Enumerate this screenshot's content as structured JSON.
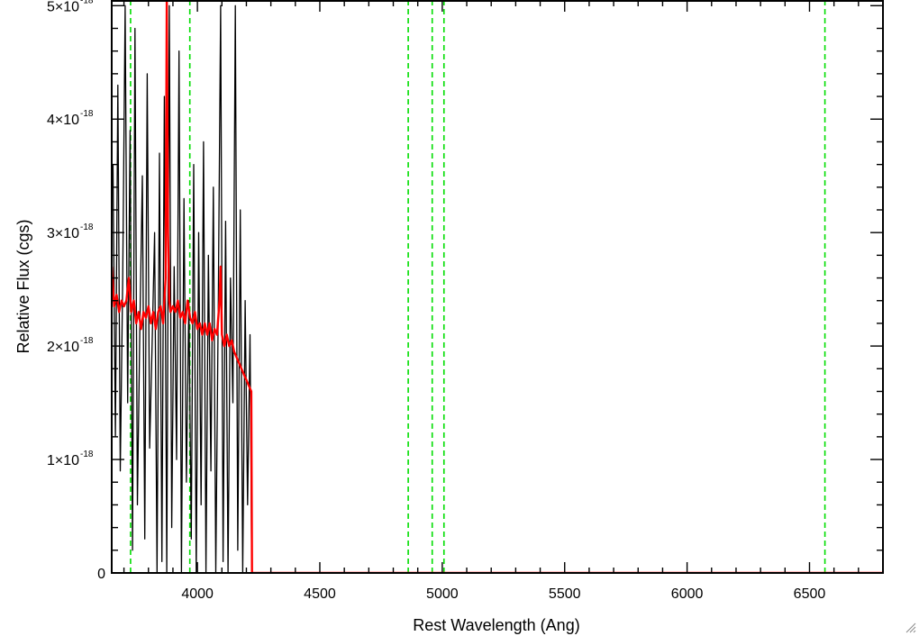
{
  "chart_data": {
    "type": "line",
    "title": "",
    "xlabel": "Rest Wavelength (Ang)",
    "ylabel": "Relative Flux (cgs)",
    "xlim": [
      3650,
      6800
    ],
    "ylim": [
      0,
      5.05e-18
    ],
    "x_ticks": [
      {
        "value": 4000,
        "label": "4000"
      },
      {
        "value": 4500,
        "label": "4500"
      },
      {
        "value": 5000,
        "label": "5000"
      },
      {
        "value": 5500,
        "label": "5500"
      },
      {
        "value": 6000,
        "label": "6000"
      },
      {
        "value": 6500,
        "label": "6500"
      }
    ],
    "y_ticks": [
      {
        "value": 0,
        "label": "0",
        "exponent": ""
      },
      {
        "value": 1e-18,
        "label": "1×10",
        "exponent": "-18"
      },
      {
        "value": 2e-18,
        "label": "2×10",
        "exponent": "-18"
      },
      {
        "value": 3e-18,
        "label": "3×10",
        "exponent": "-18"
      },
      {
        "value": 4e-18,
        "label": "4×10",
        "exponent": "-18"
      },
      {
        "value": 5e-18,
        "label": "5×10",
        "exponent": "-18"
      }
    ],
    "emission_line_markers": {
      "color": "#00dd00",
      "style": "dashed",
      "x": [
        3727,
        3969,
        4861,
        4959,
        5007,
        6563
      ]
    },
    "series": [
      {
        "color": "#000000",
        "style": "noisy observed spectrum, values clipped at top of plot",
        "x": [
          3655,
          3665,
          3675,
          3685,
          3695,
          3705,
          3715,
          3725,
          3735,
          3745,
          3755,
          3765,
          3775,
          3785,
          3795,
          3805,
          3815,
          3825,
          3835,
          3845,
          3855,
          3865,
          3875,
          3885,
          3895,
          3905,
          3915,
          3925,
          3935,
          3945,
          3955,
          3965,
          3975,
          3985,
          3995,
          4005,
          4015,
          4025,
          4035,
          4045,
          4055,
          4065,
          4075,
          4085,
          4095,
          4105,
          4115,
          4125,
          4135,
          4145,
          4155,
          4165,
          4175,
          4185,
          4195,
          4205,
          4215,
          4222,
          4230,
          4500,
          5000,
          5500,
          6000,
          6500,
          6800
        ],
        "values": [
          3.6e-18,
          1.2e-18,
          4.3e-18,
          9e-19,
          2.6e-18,
          5e-18,
          1.5e-18,
          3.9e-18,
          2e-19,
          4.8e-18,
          6e-19,
          2.2e-18,
          3.5e-18,
          3e-19,
          4.4e-18,
          1.1e-18,
          2e-18,
          3e-18,
          0.0,
          3.7e-18,
          1e-19,
          4.2e-18,
          0.0,
          5e-18,
          4e-19,
          2.7e-18,
          1e-18,
          4.6e-18,
          0.0,
          3.3e-18,
          8e-19,
          2.4e-18,
          3e-19,
          3.6e-18,
          0.0,
          3e-18,
          6e-19,
          3.8e-18,
          0.0,
          2.8e-18,
          9e-19,
          3.4e-18,
          0.0,
          2.3e-18,
          5e-18,
          1e-19,
          3.1e-18,
          0.0,
          2.6e-18,
          1.5e-18,
          5e-18,
          2e-19,
          3.2e-18,
          0.0,
          2.4e-18,
          6e-19,
          2.1e-18,
          0.0,
          0.0,
          0.0,
          0.0,
          0.0,
          0.0,
          0.0,
          0.0
        ]
      },
      {
        "color": "#ff0000",
        "style": "smoothed / model spectrum",
        "x": [
          3650,
          3660,
          3670,
          3680,
          3690,
          3700,
          3710,
          3720,
          3730,
          3740,
          3750,
          3760,
          3770,
          3780,
          3790,
          3800,
          3810,
          3820,
          3830,
          3840,
          3850,
          3860,
          3870,
          3875,
          3880,
          3885,
          3890,
          3900,
          3910,
          3920,
          3930,
          3940,
          3950,
          3960,
          3970,
          3980,
          3990,
          4000,
          4010,
          4020,
          4030,
          4040,
          4050,
          4060,
          4070,
          4080,
          4090,
          4095,
          4100,
          4110,
          4120,
          4130,
          4140,
          4150,
          4160,
          4170,
          4180,
          4190,
          4200,
          4210,
          4220,
          4223,
          4230,
          4500,
          5000,
          5500,
          6000,
          6500,
          6800
        ],
        "values": [
          2.7e-18,
          2.35e-18,
          2.45e-18,
          2.3e-18,
          2.4e-18,
          2.35e-18,
          2.4e-18,
          2.6e-18,
          2.3e-18,
          2.4e-18,
          2.2e-18,
          2.3e-18,
          2.15e-18,
          2.3e-18,
          2.25e-18,
          2.35e-18,
          2.2e-18,
          2.3e-18,
          2.15e-18,
          2.3e-18,
          2.35e-18,
          2.2e-18,
          2.6e-18,
          5.05e-18,
          3e-18,
          2.4e-18,
          2.3e-18,
          2.35e-18,
          2.3e-18,
          2.4e-18,
          2.25e-18,
          2.3e-18,
          2.2e-18,
          2.4e-18,
          2.25e-18,
          2.2e-18,
          2.3e-18,
          2.15e-18,
          2.2e-18,
          2.1e-18,
          2.2e-18,
          2.1e-18,
          2.2e-18,
          2.05e-18,
          2.15e-18,
          2.1e-18,
          2.4e-18,
          2.7e-18,
          2.1e-18,
          2e-18,
          2.1e-18,
          2e-18,
          2.05e-18,
          1.95e-18,
          1.9e-18,
          1.85e-18,
          1.8e-18,
          1.75e-18,
          1.7e-18,
          1.65e-18,
          1.6e-18,
          0.0,
          0.0,
          0.0,
          0.0,
          0.0,
          0.0,
          0.0,
          0.0
        ]
      }
    ],
    "grid": false,
    "legend": "none"
  }
}
